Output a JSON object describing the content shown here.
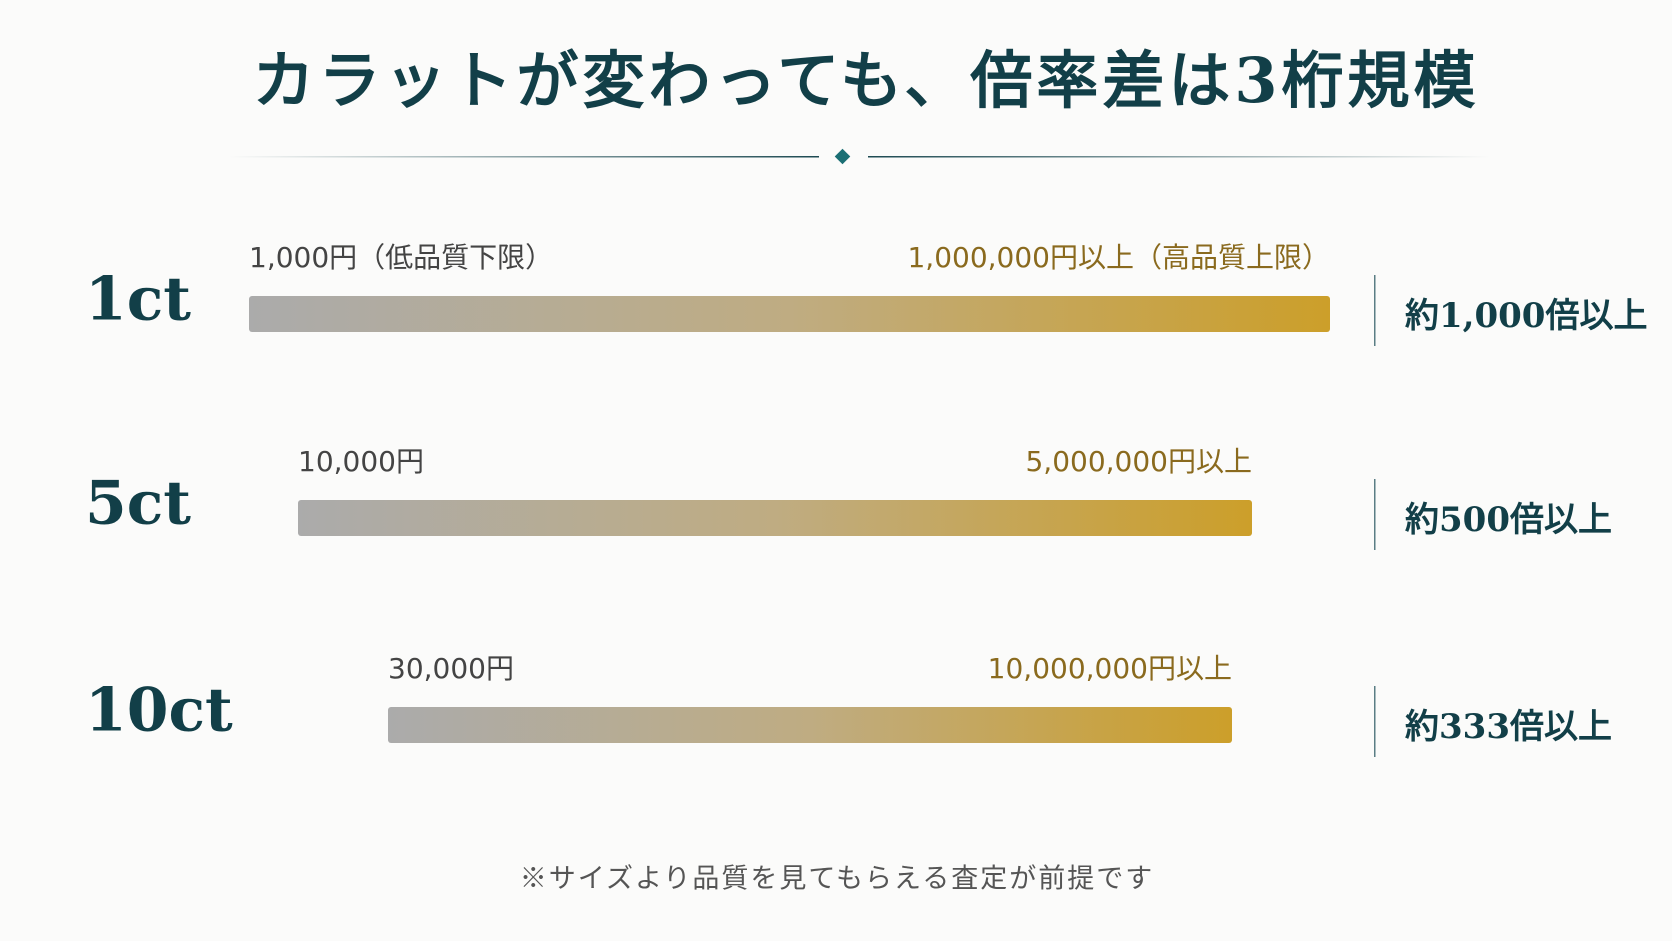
{
  "header": {
    "title": "カラットが変わっても、倍率差は3桁規模"
  },
  "rows": [
    {
      "label": "1ct",
      "low": "1,000円（低品質下限）",
      "high": "1,000,000円以上（高品質上限）",
      "ratio": "約1,000倍以上"
    },
    {
      "label": "5ct",
      "low": "10,000円",
      "high": "5,000,000円以上",
      "ratio": "約500倍以上"
    },
    {
      "label": "10ct",
      "low": "30,000円",
      "high": "10,000,000円以上",
      "ratio": "約333倍以上"
    }
  ],
  "footnote": "※サイズより品質を見てもらえる査定が前提です"
}
